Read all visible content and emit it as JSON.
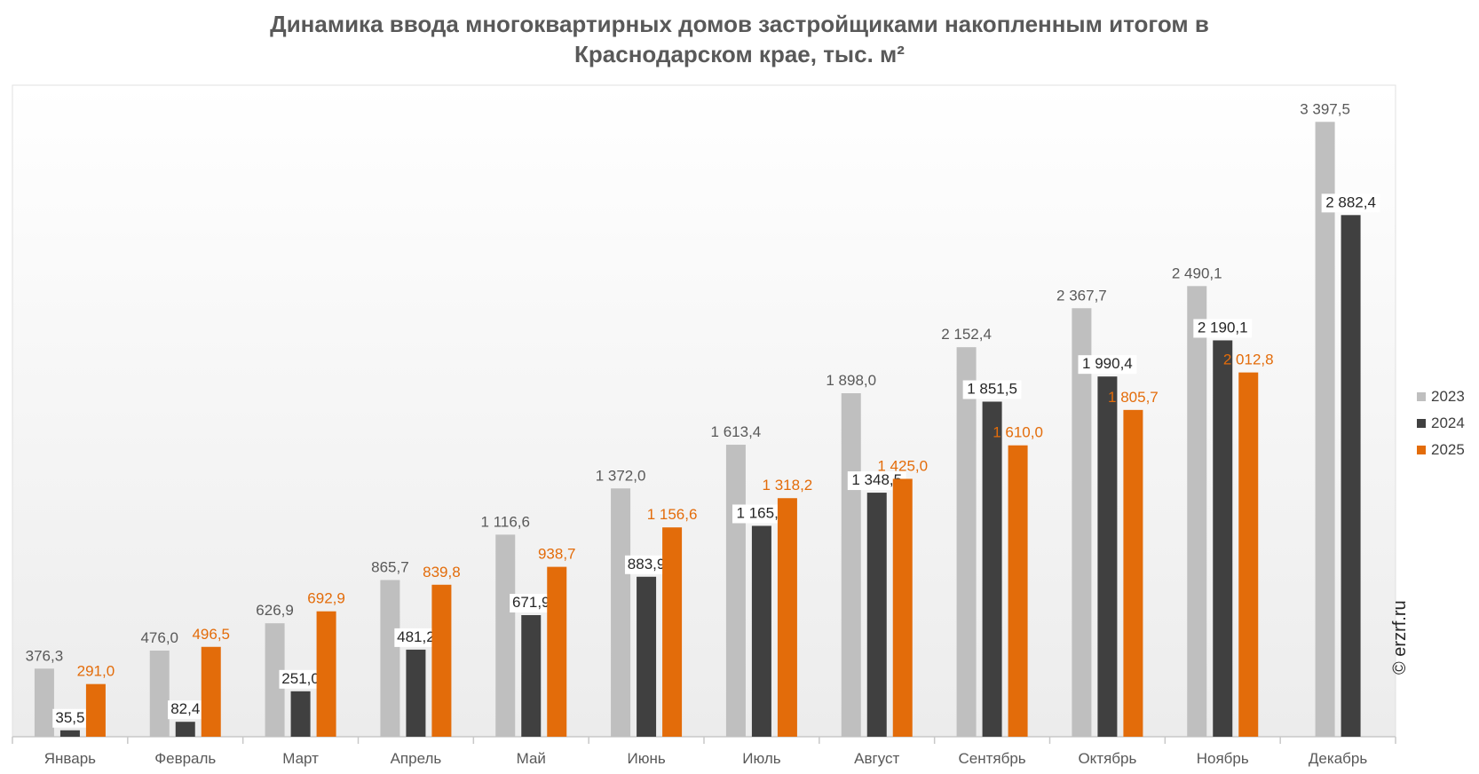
{
  "title_lines": [
    "Динамика ввода многоквартирных домов застройщиками накопленным итогом в",
    "Краснодарском крае, тыс. м²"
  ],
  "watermark": "© erzrf.ru",
  "chart_data": {
    "type": "bar",
    "title": "Динамика ввода многоквартирных домов застройщиками накопленным итогом в Краснодарском крае, тыс. м²",
    "categories": [
      "Январь",
      "Февраль",
      "Март",
      "Апрель",
      "Май",
      "Июнь",
      "Июль",
      "Август",
      "Сентябрь",
      "Октябрь",
      "Ноябрь",
      "Декабрь"
    ],
    "series": [
      {
        "name": "2023",
        "color": "#bfbfbf",
        "label_color": "#595959",
        "values": [
          376.3,
          476.0,
          626.9,
          865.7,
          1116.6,
          1372.0,
          1613.4,
          1898.0,
          2152.4,
          2367.7,
          2490.1,
          3397.5
        ],
        "labels": [
          "376,3",
          "476,0",
          "626,9",
          "865,7",
          "1 116,6",
          "1 372,0",
          "1 613,4",
          "1 898,0",
          "2 152,4",
          "2 367,7",
          "2 490,1",
          "3 397,5"
        ]
      },
      {
        "name": "2024",
        "color": "#404040",
        "label_color": "#262626",
        "values": [
          35.5,
          82.4,
          251.0,
          481.2,
          671.9,
          883.9,
          1165.1,
          1348.5,
          1851.5,
          1990.4,
          2190.1,
          2882.4
        ],
        "labels": [
          "35,5",
          "82,4",
          "251,0",
          "481,2",
          "671,9",
          "883,9",
          "1 165,1",
          "1 348,5",
          "1 851,5",
          "1 990,4",
          "2 190,1",
          "2 882,4"
        ]
      },
      {
        "name": "2025",
        "color": "#e36c0a",
        "label_color": "#e36c0a",
        "values": [
          291.0,
          496.5,
          692.9,
          839.8,
          938.7,
          1156.6,
          1318.2,
          1425.0,
          1610.0,
          1805.7,
          2012.8,
          null
        ],
        "labels": [
          "291,0",
          "496,5",
          "692,9",
          "839,8",
          "938,7",
          "1 156,6",
          "1 318,2",
          "1 425,0",
          "1 610,0",
          "1 805,7",
          "2 012,8",
          ""
        ]
      }
    ],
    "ylim": [
      0,
      3600
    ],
    "grid": false,
    "legend": "right",
    "xlabel": "",
    "ylabel": ""
  }
}
